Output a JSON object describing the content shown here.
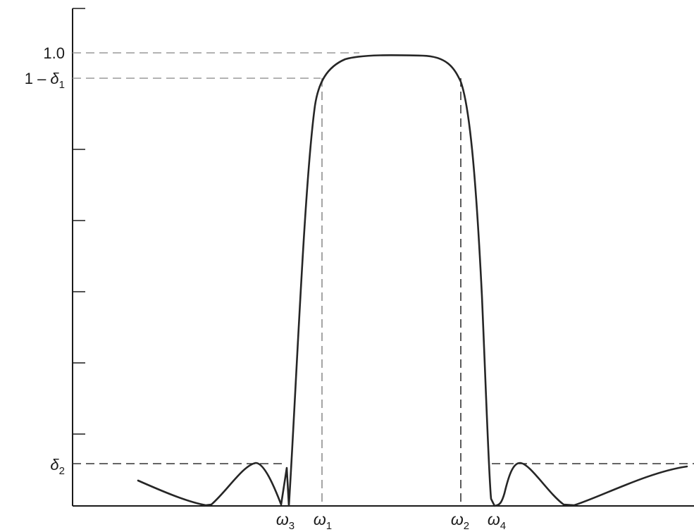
{
  "chart_data": {
    "type": "line",
    "title": "",
    "xlabel": "",
    "ylabel": "",
    "y_tick_labels": {
      "one": "1.0",
      "pass_edge_prefix": "1 – ",
      "pass_edge_symbol": "δ",
      "pass_edge_sub": "1",
      "stop_symbol": "δ",
      "stop_sub": "2"
    },
    "x_tick_labels": [
      {
        "symbol": "ω",
        "sub": "3"
      },
      {
        "symbol": "ω",
        "sub": "1"
      },
      {
        "symbol": "ω",
        "sub": "2"
      },
      {
        "symbol": "ω",
        "sub": "4"
      }
    ],
    "grid": false,
    "colors": {
      "curve": "#262626",
      "axis": "#1a1a1a",
      "guide_left": "#9a9a9a",
      "guide_dark": "#333333"
    }
  }
}
